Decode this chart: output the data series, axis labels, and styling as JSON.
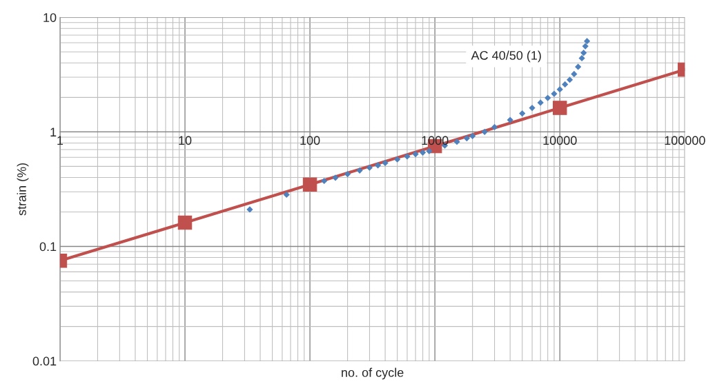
{
  "chart_data": {
    "type": "scatter",
    "xlabel": "no. of cycle",
    "ylabel": "strain (%)",
    "log": "xy",
    "grid": true,
    "legend": false,
    "xlim": [
      1,
      100000
    ],
    "ylim": [
      0.01,
      10
    ],
    "xticks": [
      1,
      10,
      100,
      1000,
      10000,
      100000
    ],
    "yticks": [
      0.01,
      0.1,
      1,
      10
    ],
    "series": [
      {
        "name": "AC 40/50 (1)",
        "marker": "diamond",
        "color": "#4f81bd",
        "x": [
          33,
          65,
          130,
          160,
          200,
          250,
          300,
          350,
          400,
          500,
          600,
          700,
          800,
          900,
          1200,
          1500,
          1800,
          2000,
          2500,
          3000,
          4000,
          5000,
          6000,
          7000,
          8000,
          9000,
          10000,
          11000,
          12000,
          13000,
          14000,
          15000,
          15500,
          16000,
          16500
        ],
        "values": [
          0.21,
          0.283,
          0.373,
          0.398,
          0.428,
          0.46,
          0.487,
          0.511,
          0.535,
          0.575,
          0.61,
          0.64,
          0.66,
          0.68,
          0.76,
          0.82,
          0.88,
          0.92,
          1.0,
          1.1,
          1.27,
          1.45,
          1.62,
          1.8,
          1.98,
          2.15,
          2.35,
          2.6,
          2.85,
          3.2,
          3.7,
          4.4,
          4.9,
          5.6,
          6.2
        ]
      },
      {
        "type": "line",
        "marker": "square",
        "line_style": "solid",
        "color": "#c0504d",
        "x": [
          1,
          10,
          100,
          1000,
          10000,
          100000
        ],
        "values": [
          0.075,
          0.161,
          0.347,
          0.75,
          1.62,
          3.5
        ]
      }
    ]
  }
}
